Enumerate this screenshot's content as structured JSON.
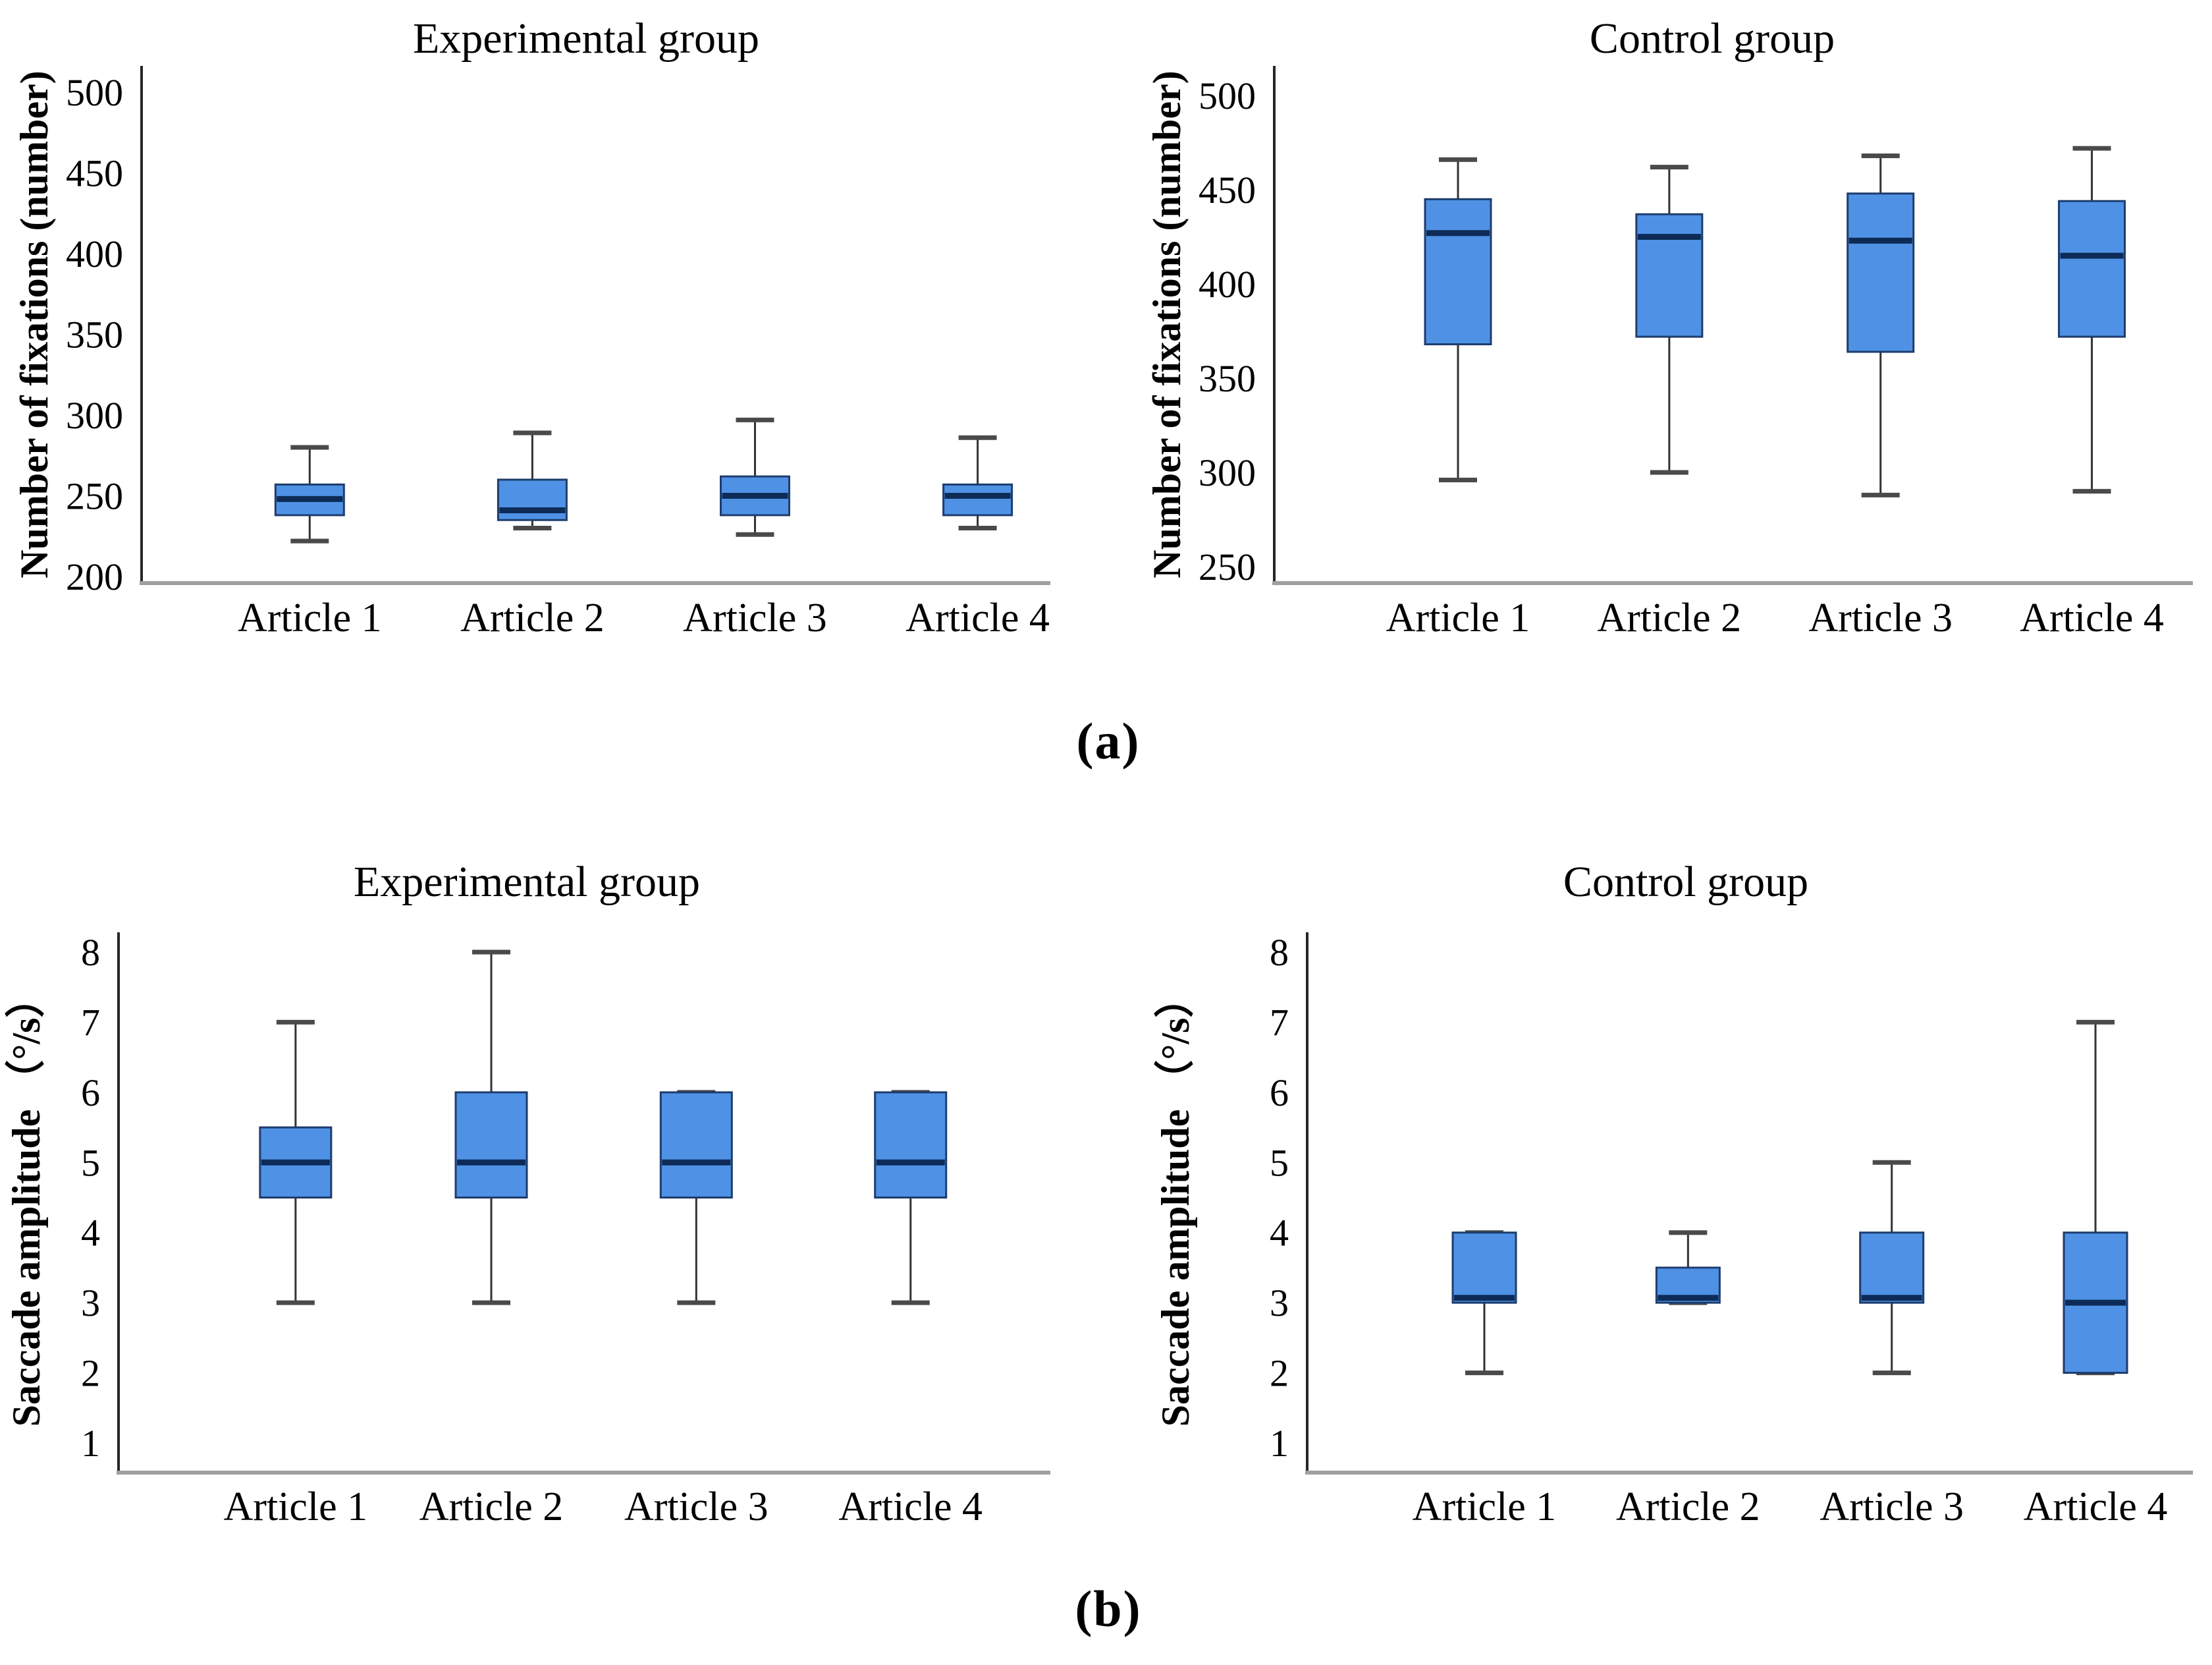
{
  "panels": {
    "a": "(a)",
    "b": "(b)"
  },
  "colors": {
    "box_fill": "#4f92e5",
    "box_border": "#1e3c6d",
    "median": "#0d2b57",
    "whisker": "#333333",
    "cap": "#4a4a4a",
    "y_axis": "#262626",
    "x_axis": "#a0a0a0"
  },
  "chart_data": [
    {
      "id": "fixations-experimental",
      "panel": "a",
      "type": "box",
      "title": "Experimental group",
      "ylabel": "Number of fixations (number)",
      "xlabel": "",
      "yticks": [
        200,
        250,
        300,
        350,
        400,
        450,
        500
      ],
      "ylim": [
        185,
        515
      ],
      "grid": false,
      "categories": [
        "Article 1",
        "Article 2",
        "Article 3",
        "Article 4"
      ],
      "series": [
        {
          "category": "Article 1",
          "min": 222,
          "q1": 238,
          "median": 248,
          "q3": 257,
          "max": 280
        },
        {
          "category": "Article 2",
          "min": 230,
          "q1": 235,
          "median": 241,
          "q3": 260,
          "max": 289
        },
        {
          "category": "Article 3",
          "min": 226,
          "q1": 238,
          "median": 250,
          "q3": 262,
          "max": 297
        },
        {
          "category": "Article 4",
          "min": 230,
          "q1": 238,
          "median": 250,
          "q3": 257,
          "max": 286
        }
      ]
    },
    {
      "id": "fixations-control",
      "panel": "a",
      "type": "box",
      "title": "Control group",
      "ylabel": "Number of fixations (number)",
      "xlabel": "",
      "yticks": [
        250,
        300,
        350,
        400,
        450,
        500
      ],
      "ylim": [
        235,
        515
      ],
      "grid": false,
      "categories": [
        "Article 1",
        "Article 2",
        "Article 3",
        "Article 4"
      ],
      "series": [
        {
          "category": "Article 1",
          "min": 296,
          "q1": 368,
          "median": 427,
          "q3": 445,
          "max": 466
        },
        {
          "category": "Article 2",
          "min": 300,
          "q1": 372,
          "median": 425,
          "q3": 437,
          "max": 462
        },
        {
          "category": "Article 3",
          "min": 288,
          "q1": 364,
          "median": 423,
          "q3": 448,
          "max": 468
        },
        {
          "category": "Article 4",
          "min": 290,
          "q1": 372,
          "median": 415,
          "q3": 444,
          "max": 472
        }
      ]
    },
    {
      "id": "saccade-experimental",
      "panel": "b",
      "type": "box",
      "title": "Experimental group",
      "ylabel": "Saccade amplitude （°/s）",
      "xlabel": "",
      "yticks": [
        1,
        2,
        3,
        4,
        5,
        6,
        7,
        8
      ],
      "ylim": [
        0.6,
        8.5
      ],
      "grid": false,
      "categories": [
        "Article 1",
        "Article 2",
        "Article 3",
        "Article 4"
      ],
      "series": [
        {
          "category": "Article 1",
          "min": 3,
          "q1": 4.5,
          "median": 5,
          "q3": 5.5,
          "max": 7
        },
        {
          "category": "Article 2",
          "min": 3,
          "q1": 4.5,
          "median": 5,
          "q3": 6,
          "max": 8
        },
        {
          "category": "Article 3",
          "min": 3,
          "q1": 4.5,
          "median": 5,
          "q3": 6,
          "max": 6
        },
        {
          "category": "Article 4",
          "min": 3,
          "q1": 4.5,
          "median": 5,
          "q3": 6,
          "max": 6
        }
      ]
    },
    {
      "id": "saccade-control",
      "panel": "b",
      "type": "box",
      "title": "Control group",
      "ylabel": "Saccade amplitude （°/s）",
      "xlabel": "",
      "yticks": [
        1,
        2,
        3,
        4,
        5,
        6,
        7,
        8
      ],
      "ylim": [
        0.6,
        8.5
      ],
      "grid": false,
      "categories": [
        "Article 1",
        "Article 2",
        "Article 3",
        "Article 4"
      ],
      "series": [
        {
          "category": "Article 1",
          "min": 2,
          "q1": 3,
          "median": 3.07,
          "q3": 4,
          "max": 4
        },
        {
          "category": "Article 2",
          "min": 3,
          "q1": 3,
          "median": 3.07,
          "q3": 3.5,
          "max": 4
        },
        {
          "category": "Article 3",
          "min": 2,
          "q1": 3,
          "median": 3.07,
          "q3": 4,
          "max": 5
        },
        {
          "category": "Article 4",
          "min": 2,
          "q1": 2,
          "median": 3,
          "q3": 4,
          "max": 7
        }
      ]
    }
  ]
}
